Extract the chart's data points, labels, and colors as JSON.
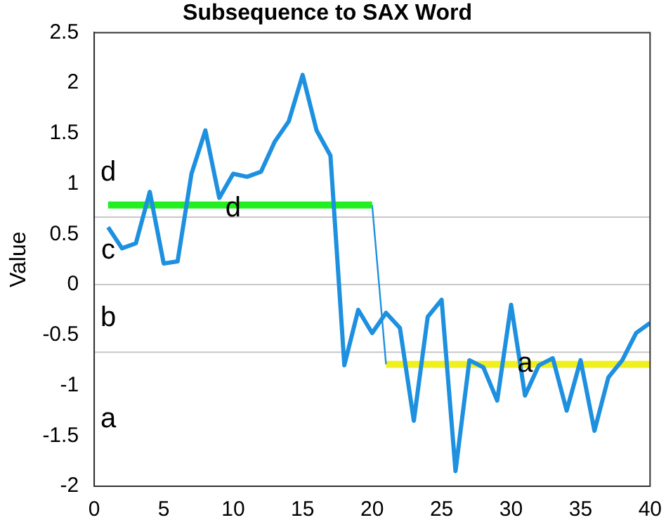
{
  "chart_data": {
    "type": "line",
    "title": "Subsequence to SAX Word",
    "ylabel": "Value",
    "x": [
      1,
      2,
      3,
      4,
      5,
      6,
      7,
      8,
      9,
      10,
      11,
      12,
      13,
      14,
      15,
      16,
      17,
      18,
      19,
      20,
      21,
      22,
      23,
      24,
      25,
      26,
      27,
      28,
      29,
      30,
      31,
      32,
      33,
      34,
      35,
      36,
      37,
      38,
      39,
      40
    ],
    "series": [
      {
        "color": "#1e90e0",
        "values": [
          0.57,
          0.36,
          0.41,
          0.92,
          0.21,
          0.23,
          1.1,
          1.53,
          0.86,
          1.1,
          1.07,
          1.12,
          1.42,
          1.62,
          2.08,
          1.53,
          1.28,
          -0.8,
          -0.25,
          -0.48,
          -0.28,
          -0.43,
          -1.35,
          -0.32,
          -0.15,
          -1.85,
          -0.75,
          -0.82,
          -1.15,
          -0.2,
          -1.1,
          -0.8,
          -0.73,
          -1.25,
          -0.75,
          -1.45,
          -0.92,
          -0.75,
          -0.48,
          -0.38
        ]
      },
      {
        "color": "#22ee22",
        "x": [
          1,
          20
        ],
        "values": [
          0.79,
          0.79
        ]
      },
      {
        "color": "#1e90e0",
        "x": [
          20,
          21
        ],
        "values": [
          0.79,
          -0.79
        ]
      },
      {
        "color": "#f0f020",
        "x": [
          21,
          40
        ],
        "values": [
          -0.79,
          -0.79
        ]
      }
    ],
    "ref_lines": [
      {
        "axis": "y",
        "value": 0.67,
        "color": "#c8c8c8"
      },
      {
        "axis": "y",
        "value": 0,
        "color": "#c8c8c8"
      },
      {
        "axis": "y",
        "value": -0.67,
        "color": "#c8c8c8"
      }
    ],
    "annotations": [
      "d",
      "c",
      "b",
      "a",
      {
        "text": "d",
        "x": 10,
        "y": 0.75
      },
      {
        "text": "a",
        "x": 31,
        "y": -0.79
      }
    ],
    "xlim": [
      0,
      40
    ],
    "xticks": [
      0,
      5,
      10,
      15,
      20,
      25,
      30,
      35,
      40
    ],
    "ylim": [
      -2,
      2.5
    ],
    "yticks": [
      -2,
      -1.5,
      -1,
      -0.5,
      0,
      0.5,
      1,
      1.5,
      2,
      2.5
    ],
    "grid": false,
    "legend": false,
    "marker": "none",
    "line_style": "solid"
  }
}
